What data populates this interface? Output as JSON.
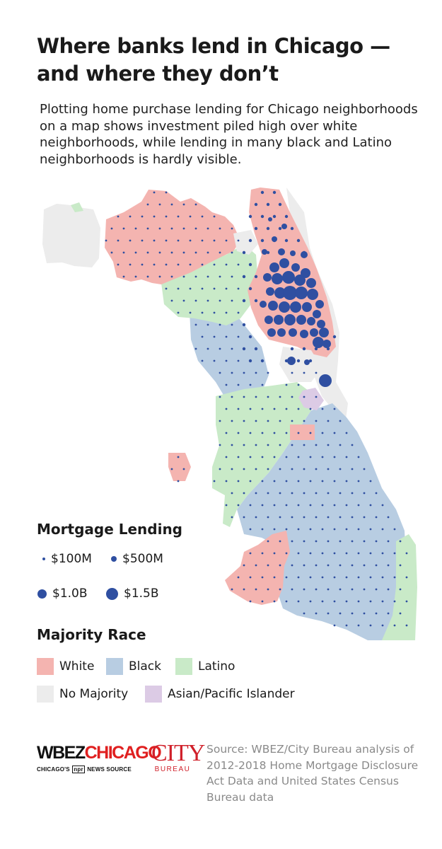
{
  "title": "Where banks lend in Chicago — and where they don’t",
  "subtitle": "Plotting home purchase lending for Chicago neighborhoods on a map shows investment piled high over white neighborhoods, while lending in many black and Latino neighborhoods is hardly visible.",
  "colors": {
    "white": "#f4b4b0",
    "black": "#b8cde2",
    "latino": "#c9eac8",
    "no_majority": "#ececec",
    "asian": "#dccbe5",
    "outside": "#ececec",
    "dot": "#2f4fa1"
  },
  "legend_lending": {
    "title": "Mortgage Lending",
    "items": [
      {
        "label": "$100M",
        "amount_millions": 100
      },
      {
        "label": "$500M",
        "amount_millions": 500
      },
      {
        "label": "$1.0B",
        "amount_millions": 1000
      },
      {
        "label": "$1.5B",
        "amount_millions": 1500
      }
    ]
  },
  "legend_race": {
    "title": "Majority Race",
    "items": [
      {
        "label": "White",
        "color": "#f4b4b0"
      },
      {
        "label": "Black",
        "color": "#b8cde2"
      },
      {
        "label": "Latino",
        "color": "#c9eac8"
      },
      {
        "label": "No Majority",
        "color": "#ececec"
      },
      {
        "label": "Asian/Pacific Islander",
        "color": "#dccbe5"
      }
    ]
  },
  "logos": {
    "wbez_part1": "WBEZ",
    "wbez_part2": "CHICAGO",
    "wbez_tag_before": "CHICAGO'S",
    "wbez_tag_npr": "npr",
    "wbez_tag_after": "NEWS SOURCE",
    "city": "CITY",
    "bureau": "BUREAU"
  },
  "source": "Source:  WBEZ/City Bureau analysis of 2012-2018 Home Mortgage Disclosure Act Data and United States Census Bureau data"
}
